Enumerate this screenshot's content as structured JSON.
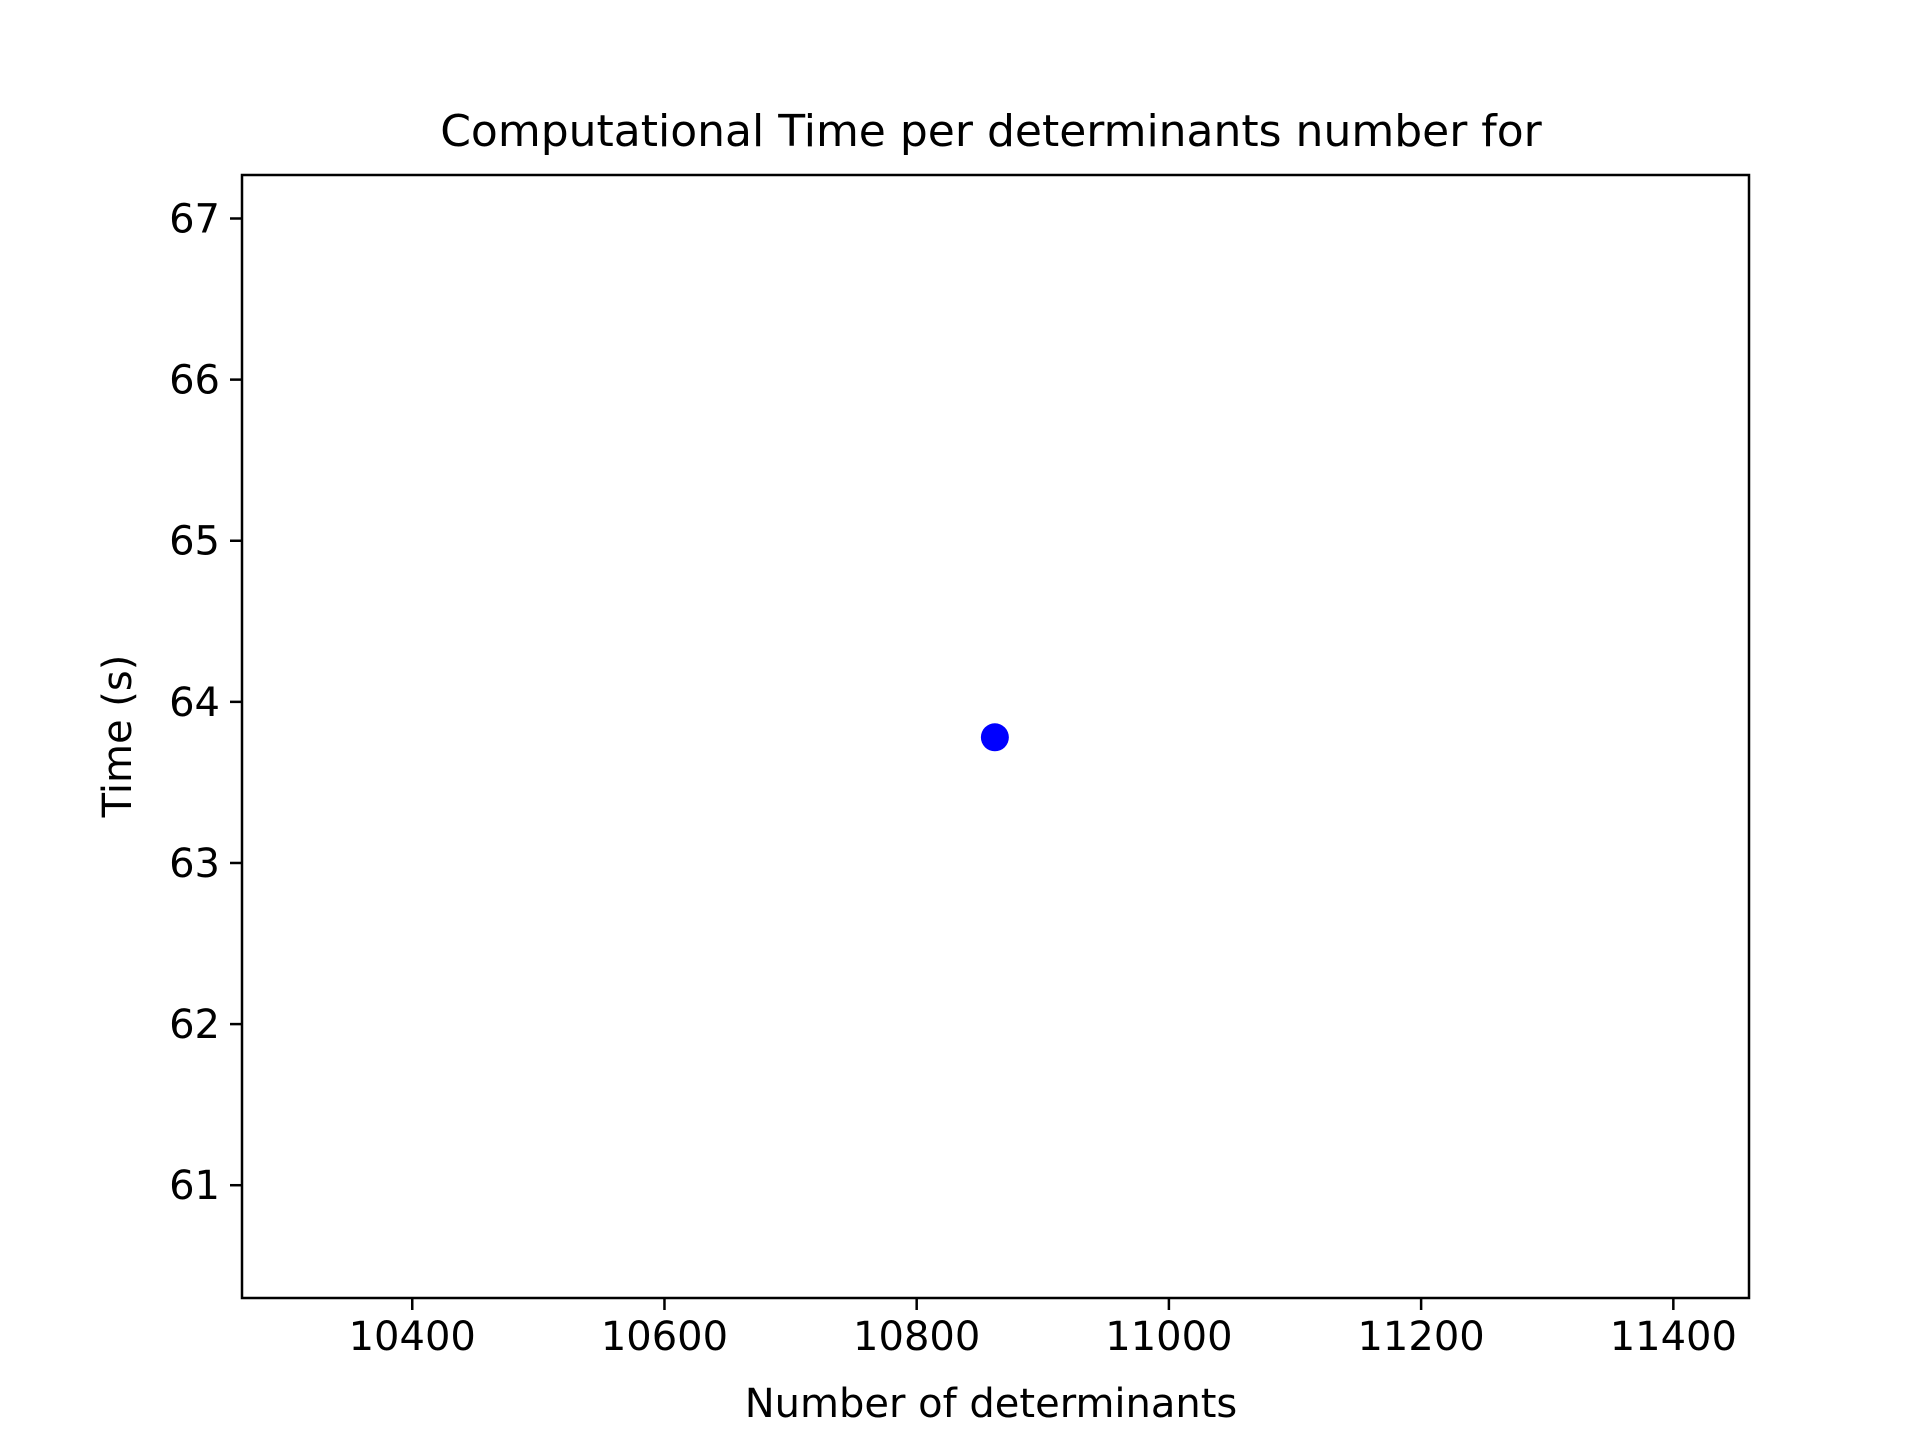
{
  "chart_data": {
    "type": "scatter",
    "title": "Computational Time per determinants number for",
    "xlabel": "Number of determinants",
    "ylabel": "Time (s)",
    "xlim": [
      10265,
      11460
    ],
    "ylim": [
      60.3,
      67.27
    ],
    "xticks": [
      10400,
      10600,
      10800,
      11000,
      11200,
      11400
    ],
    "yticks": [
      61,
      62,
      63,
      64,
      65,
      66,
      67
    ],
    "grid": false,
    "series": [
      {
        "color": "#0000ff",
        "marker": "circle",
        "points": [
          {
            "x": 10862,
            "y": 63.78
          }
        ]
      }
    ]
  }
}
